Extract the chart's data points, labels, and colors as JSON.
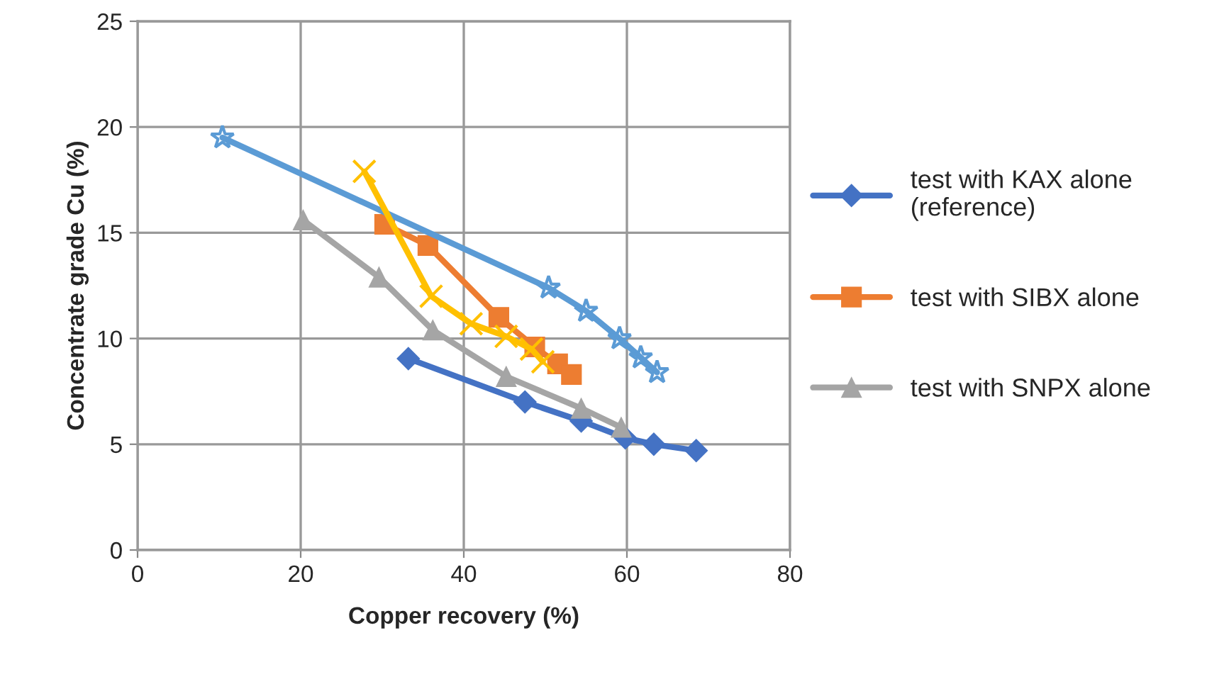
{
  "chart_data": {
    "type": "line",
    "xlabel": "Copper recovery (%)",
    "ylabel": "Concentrate grade Cu (%)",
    "xlim": [
      0,
      80
    ],
    "xticks": [
      0,
      20,
      40,
      60,
      80
    ],
    "ylim": [
      0,
      25
    ],
    "yticks": [
      0,
      5,
      10,
      15,
      20,
      25
    ],
    "grid": true,
    "legend": "right",
    "line_style": "solid",
    "series": [
      {
        "name": "test with KAX alone\n(reference)",
        "color": "#4472c4",
        "marker": "diamond",
        "x": [
          33.2,
          47.5,
          54.4,
          59.8,
          63.3,
          68.5
        ],
        "values": [
          9.05,
          7.0,
          6.1,
          5.3,
          5.0,
          4.7
        ]
      },
      {
        "name": "test with SIBX alone",
        "color": "#ed7d31",
        "marker": "square",
        "x": [
          30.3,
          35.6,
          44.3,
          48.7,
          51.5,
          53.2
        ],
        "values": [
          15.4,
          14.4,
          11.0,
          9.6,
          8.8,
          8.3
        ]
      },
      {
        "name": "test with SNPX alone",
        "color": "#a5a5a5",
        "marker": "triangle",
        "x": [
          20.3,
          29.6,
          36.2,
          45.2,
          54.4,
          59.3
        ],
        "values": [
          15.6,
          12.9,
          10.4,
          8.2,
          6.7,
          5.8
        ]
      },
      {
        "color": "#5b9bd5",
        "marker": "star",
        "x": [
          10.4,
          50.4,
          55.0,
          59.1,
          61.7,
          63.7
        ],
        "values": [
          19.5,
          12.4,
          11.3,
          10.0,
          9.1,
          8.4
        ]
      },
      {
        "color": "#ffc000",
        "marker": "cross",
        "x": [
          27.8,
          36.0,
          40.9,
          45.2,
          48.3,
          49.7
        ],
        "values": [
          17.9,
          12.0,
          10.7,
          10.1,
          9.5,
          8.9
        ]
      }
    ]
  }
}
